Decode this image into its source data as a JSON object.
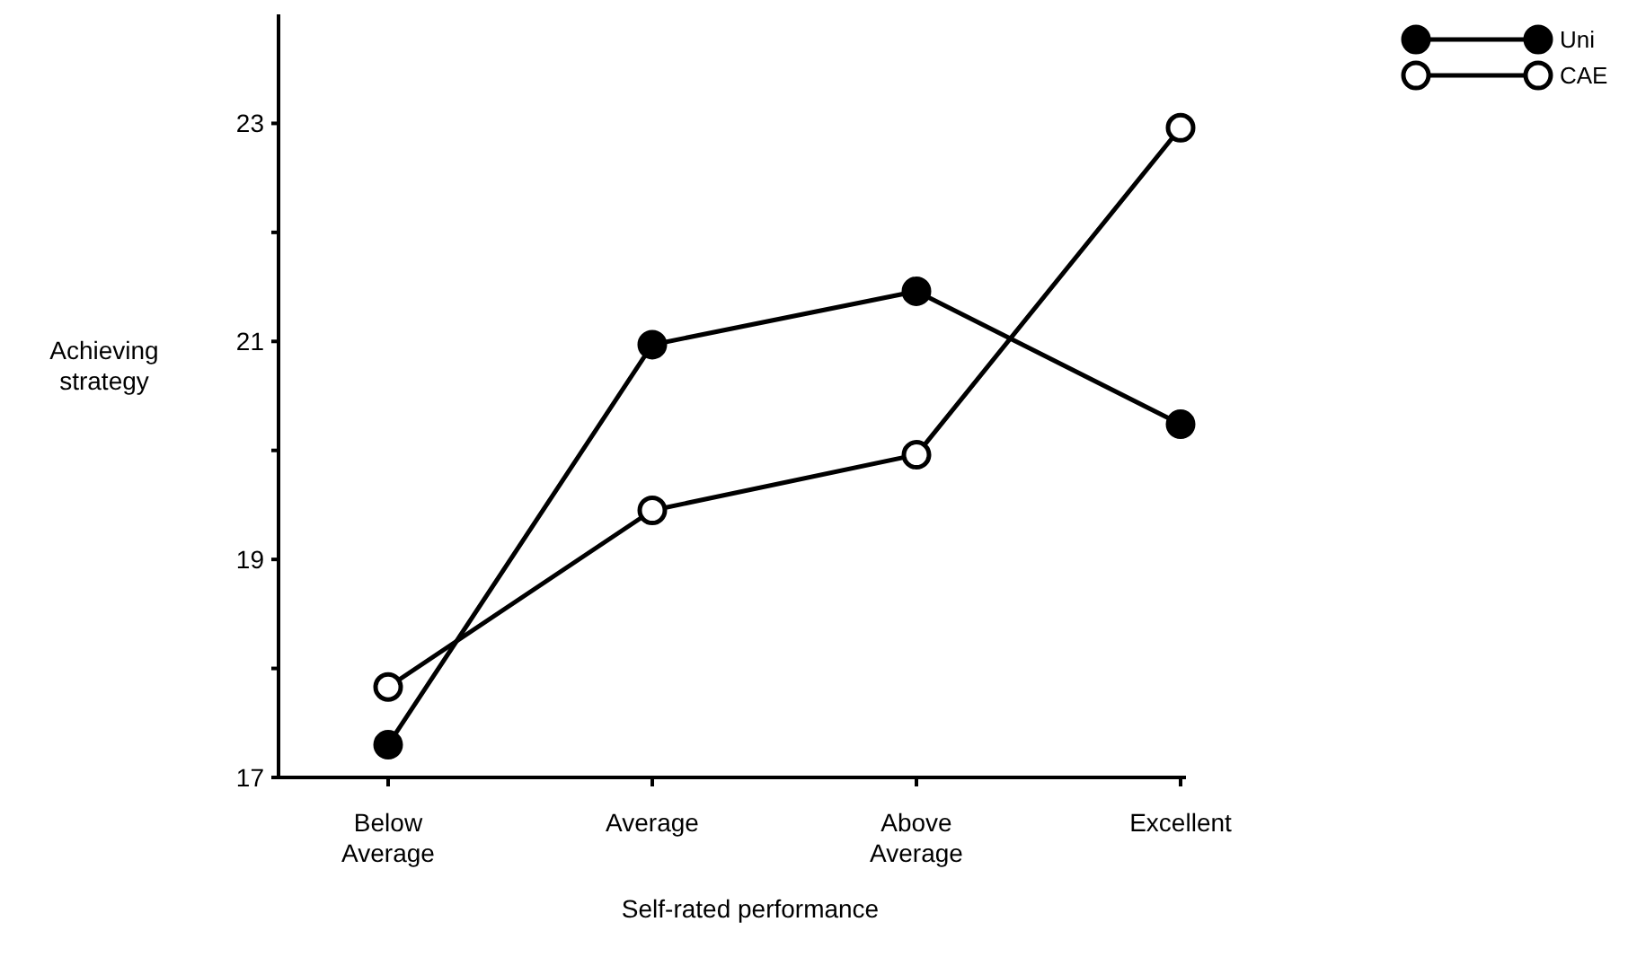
{
  "chart_data": {
    "type": "line",
    "xlabel": "Self-rated performance",
    "ylabel": "Achieving strategy",
    "categories": [
      "Below Average",
      "Average",
      "Above Average",
      "Excellent"
    ],
    "series": [
      {
        "name": "Uni",
        "color": "#000000",
        "values": [
          17.3,
          20.97,
          21.46,
          20.24
        ]
      },
      {
        "name": "CAE",
        "color": "#000000",
        "values": [
          17.83,
          19.45,
          19.96,
          22.96
        ]
      }
    ],
    "ylim": [
      17,
      24
    ],
    "yticks": [
      17,
      {
        "value": 18,
        "label": null
      },
      19,
      {
        "value": 20,
        "label": null
      },
      21,
      {
        "value": 22,
        "label": null
      },
      23
    ],
    "marker": "circle",
    "line_style": "solid",
    "grid": false,
    "legend": "top right"
  }
}
